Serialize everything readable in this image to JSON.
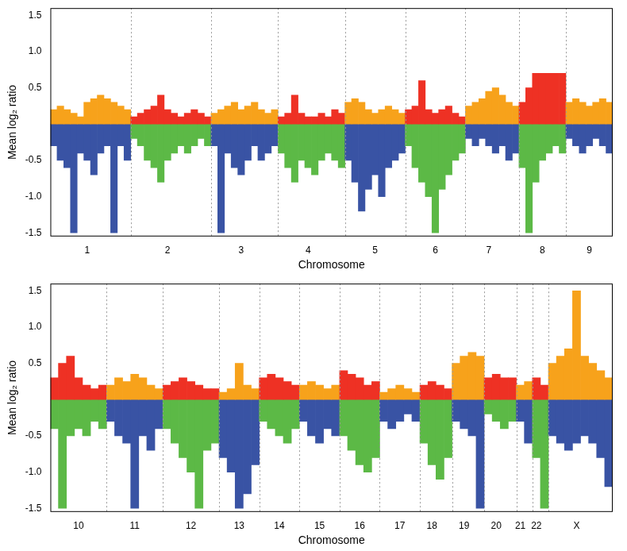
{
  "chart_data": [
    {
      "type": "bar",
      "stacked": true,
      "grid": false,
      "legend": false,
      "x_label": "Chromosome",
      "y_label": "Mean log₂ ratio",
      "ylim": [
        -1.55,
        1.6
      ],
      "yticks": [
        {
          "value": -1.5,
          "label": "-1.5"
        },
        {
          "value": -1,
          "label": "-1.0"
        },
        {
          "value": -0.5,
          "label": "-0.5"
        },
        {
          "value": 0.5,
          "label": "0.5"
        },
        {
          "value": 1,
          "label": "1.0"
        },
        {
          "value": 1.5,
          "label": "1.5"
        }
      ],
      "chromosomes": [
        {
          "name": "1",
          "series": [
            {
              "color": "#F7A21B",
              "values": [
                0.2,
                0.25,
                0.2,
                0.15,
                0.1,
                0.3,
                0.35,
                0.4,
                0.35,
                0.3,
                0.25,
                0.2
              ]
            },
            {
              "color": "#3953A4",
              "values": [
                -0.3,
                -0.5,
                -0.6,
                -1.5,
                -0.4,
                -0.5,
                -0.7,
                -0.4,
                -0.3,
                -1.5,
                -0.3,
                -0.5
              ]
            }
          ]
        },
        {
          "name": "2",
          "series": [
            {
              "color": "#EE3124",
              "values": [
                0.1,
                0.15,
                0.2,
                0.25,
                0.4,
                0.2,
                0.15,
                0.1,
                0.15,
                0.2,
                0.15,
                0.1
              ]
            },
            {
              "color": "#5CB946",
              "values": [
                -0.2,
                -0.3,
                -0.5,
                -0.6,
                -0.8,
                -0.5,
                -0.4,
                -0.3,
                -0.4,
                -0.3,
                -0.2,
                -0.3
              ]
            }
          ]
        },
        {
          "name": "3",
          "series": [
            {
              "color": "#F7A21B",
              "values": [
                0.15,
                0.2,
                0.25,
                0.3,
                0.2,
                0.25,
                0.3,
                0.2,
                0.15,
                0.2
              ]
            },
            {
              "color": "#3953A4",
              "values": [
                -0.3,
                -1.5,
                -0.4,
                -0.6,
                -0.7,
                -0.5,
                -0.3,
                -0.5,
                -0.4,
                -0.3
              ]
            }
          ]
        },
        {
          "name": "4",
          "series": [
            {
              "color": "#EE3124",
              "values": [
                0.1,
                0.15,
                0.4,
                0.15,
                0.1,
                0.1,
                0.15,
                0.1,
                0.2,
                0.15
              ]
            },
            {
              "color": "#5CB946",
              "values": [
                -0.4,
                -0.6,
                -0.8,
                -0.5,
                -0.6,
                -0.7,
                -0.5,
                -0.4,
                -0.5,
                -0.6
              ]
            }
          ]
        },
        {
          "name": "5",
          "series": [
            {
              "color": "#F7A21B",
              "values": [
                0.3,
                0.35,
                0.3,
                0.2,
                0.15,
                0.2,
                0.25,
                0.2,
                0.15
              ]
            },
            {
              "color": "#3953A4",
              "values": [
                -0.5,
                -0.8,
                -1.2,
                -0.9,
                -0.7,
                -1.0,
                -0.6,
                -0.5,
                -0.4
              ]
            }
          ]
        },
        {
          "name": "6",
          "series": [
            {
              "color": "#EE3124",
              "values": [
                0.2,
                0.25,
                0.6,
                0.2,
                0.15,
                0.2,
                0.25,
                0.15,
                0.1
              ]
            },
            {
              "color": "#5CB946",
              "values": [
                -0.3,
                -0.6,
                -0.8,
                -1.0,
                -1.5,
                -0.9,
                -0.7,
                -0.5,
                -0.4
              ]
            }
          ]
        },
        {
          "name": "7",
          "series": [
            {
              "color": "#F7A21B",
              "values": [
                0.25,
                0.3,
                0.35,
                0.45,
                0.5,
                0.4,
                0.3,
                0.25
              ]
            },
            {
              "color": "#3953A4",
              "values": [
                -0.2,
                -0.3,
                -0.2,
                -0.3,
                -0.4,
                -0.3,
                -0.5,
                -0.4
              ]
            }
          ]
        },
        {
          "name": "8",
          "series": [
            {
              "color": "#EE3124",
              "values": [
                0.3,
                0.5,
                0.7,
                0.7,
                0.7,
                0.7,
                0.7
              ]
            },
            {
              "color": "#5CB946",
              "values": [
                -0.6,
                -1.5,
                -0.8,
                -0.5,
                -0.4,
                -0.3,
                -0.4
              ]
            }
          ]
        },
        {
          "name": "9",
          "series": [
            {
              "color": "#F7A21B",
              "values": [
                0.3,
                0.35,
                0.3,
                0.25,
                0.3,
                0.35,
                0.3
              ]
            },
            {
              "color": "#3953A4",
              "values": [
                -0.2,
                -0.3,
                -0.4,
                -0.3,
                -0.2,
                -0.3,
                -0.4
              ]
            }
          ]
        }
      ]
    },
    {
      "type": "bar",
      "stacked": true,
      "grid": false,
      "legend": false,
      "x_label": "Chromosome",
      "y_label": "Mean log₂ ratio",
      "ylim": [
        -1.55,
        1.6
      ],
      "yticks": [
        {
          "value": -1.5,
          "label": "-1.5"
        },
        {
          "value": -1,
          "label": "-1.0"
        },
        {
          "value": -0.5,
          "label": "-0.5"
        },
        {
          "value": 0.5,
          "label": "0.5"
        },
        {
          "value": 1,
          "label": "1.0"
        },
        {
          "value": 1.5,
          "label": "1.5"
        }
      ],
      "chromosomes": [
        {
          "name": "10",
          "series": [
            {
              "color": "#EE3124",
              "values": [
                0.3,
                0.5,
                0.6,
                0.3,
                0.2,
                0.15,
                0.2
              ]
            },
            {
              "color": "#5CB946",
              "values": [
                -0.4,
                -1.5,
                -0.5,
                -0.4,
                -0.5,
                -0.3,
                -0.4
              ]
            }
          ]
        },
        {
          "name": "11",
          "series": [
            {
              "color": "#F7A21B",
              "values": [
                0.2,
                0.3,
                0.25,
                0.35,
                0.3,
                0.2,
                0.15
              ]
            },
            {
              "color": "#3953A4",
              "values": [
                -0.3,
                -0.5,
                -0.6,
                -1.5,
                -0.5,
                -0.7,
                -0.4
              ]
            }
          ]
        },
        {
          "name": "12",
          "series": [
            {
              "color": "#EE3124",
              "values": [
                0.2,
                0.25,
                0.3,
                0.25,
                0.2,
                0.15,
                0.15
              ]
            },
            {
              "color": "#5CB946",
              "values": [
                -0.4,
                -0.6,
                -0.8,
                -1.0,
                -1.5,
                -0.7,
                -0.6
              ]
            }
          ]
        },
        {
          "name": "13",
          "series": [
            {
              "color": "#F7A21B",
              "values": [
                0.1,
                0.15,
                0.5,
                0.2,
                0.15
              ]
            },
            {
              "color": "#3953A4",
              "values": [
                -0.8,
                -1.0,
                -1.5,
                -1.3,
                -0.9
              ]
            }
          ]
        },
        {
          "name": "14",
          "series": [
            {
              "color": "#EE3124",
              "values": [
                0.3,
                0.35,
                0.3,
                0.25,
                0.2
              ]
            },
            {
              "color": "#5CB946",
              "values": [
                -0.3,
                -0.4,
                -0.5,
                -0.6,
                -0.4
              ]
            }
          ]
        },
        {
          "name": "15",
          "series": [
            {
              "color": "#F7A21B",
              "values": [
                0.2,
                0.25,
                0.2,
                0.15,
                0.2
              ]
            },
            {
              "color": "#3953A4",
              "values": [
                -0.3,
                -0.5,
                -0.6,
                -0.4,
                -0.5
              ]
            }
          ]
        },
        {
          "name": "16",
          "series": [
            {
              "color": "#EE3124",
              "values": [
                0.4,
                0.35,
                0.3,
                0.2,
                0.25
              ]
            },
            {
              "color": "#5CB946",
              "values": [
                -0.5,
                -0.7,
                -0.9,
                -1.0,
                -0.8
              ]
            }
          ]
        },
        {
          "name": "17",
          "series": [
            {
              "color": "#F7A21B",
              "values": [
                0.1,
                0.15,
                0.2,
                0.15,
                0.1
              ]
            },
            {
              "color": "#3953A4",
              "values": [
                -0.3,
                -0.4,
                -0.3,
                -0.2,
                -0.3
              ]
            }
          ]
        },
        {
          "name": "18",
          "series": [
            {
              "color": "#EE3124",
              "values": [
                0.2,
                0.25,
                0.2,
                0.15
              ]
            },
            {
              "color": "#5CB946",
              "values": [
                -0.6,
                -0.9,
                -1.1,
                -0.8
              ]
            }
          ]
        },
        {
          "name": "19",
          "series": [
            {
              "color": "#F7A21B",
              "values": [
                0.5,
                0.6,
                0.65,
                0.6
              ]
            },
            {
              "color": "#3953A4",
              "values": [
                -0.3,
                -0.4,
                -0.5,
                -1.5
              ]
            }
          ]
        },
        {
          "name": "20",
          "series": [
            {
              "color": "#EE3124",
              "values": [
                0.3,
                0.35,
                0.3,
                0.3
              ]
            },
            {
              "color": "#5CB946",
              "values": [
                -0.2,
                -0.3,
                -0.4,
                -0.3
              ]
            }
          ]
        },
        {
          "name": "21",
          "series": [
            {
              "color": "#F7A21B",
              "values": [
                0.2,
                0.25
              ]
            },
            {
              "color": "#3953A4",
              "values": [
                -0.3,
                -0.6
              ]
            }
          ]
        },
        {
          "name": "22",
          "series": [
            {
              "color": "#EE3124",
              "values": [
                0.3,
                0.2
              ]
            },
            {
              "color": "#5CB946",
              "values": [
                -0.8,
                -1.5
              ]
            }
          ]
        },
        {
          "name": "X",
          "series": [
            {
              "color": "#F7A21B",
              "values": [
                0.5,
                0.6,
                0.7,
                1.5,
                0.6,
                0.5,
                0.4,
                0.3
              ]
            },
            {
              "color": "#3953A4",
              "values": [
                -0.5,
                -0.6,
                -0.7,
                -0.6,
                -0.5,
                -0.6,
                -0.8,
                -1.2
              ]
            }
          ]
        }
      ]
    }
  ]
}
